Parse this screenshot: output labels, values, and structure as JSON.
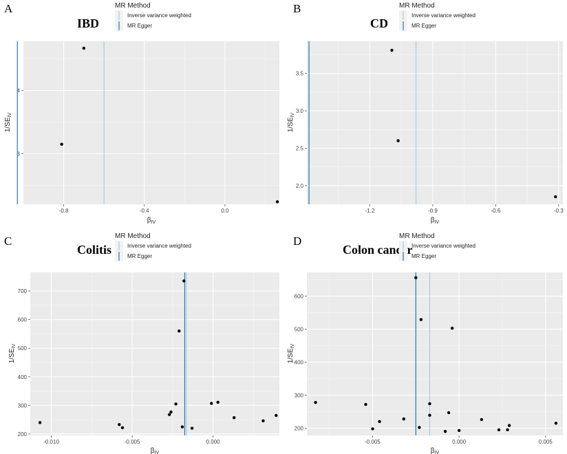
{
  "chart_data": [
    {
      "type": "scatter",
      "panel": "A",
      "title": "IBD",
      "legend_title": "MR Method",
      "legend": [
        "Inverse variance weighted",
        "MR Egger"
      ],
      "xlabel": "β",
      "xlabel_sub": "IV",
      "ylabel": "1/SE",
      "ylabel_sub": "IV",
      "xlim": [
        -1.0,
        0.27
      ],
      "ylim": [
        2.2,
        4.78
      ],
      "xticks": [
        -0.8,
        -0.4,
        0.0
      ],
      "xtick_labels": [
        "-0.8",
        "-0.4",
        "0.0"
      ],
      "yticks": [
        3,
        4
      ],
      "ytick_labels": [
        "3",
        "4"
      ],
      "points": [
        [
          -0.7,
          4.67
        ],
        [
          -0.81,
          3.15
        ],
        [
          0.26,
          2.24
        ]
      ],
      "lines": [
        {
          "method": "Inverse variance weighted",
          "x": -0.6
        },
        {
          "method": "MR Egger",
          "x": -1.03
        }
      ]
    },
    {
      "type": "scatter",
      "panel": "B",
      "title": "CD",
      "legend_title": "MR Method",
      "legend": [
        "Inverse variance weighted",
        "MR Egger"
      ],
      "xlabel": "β",
      "xlabel_sub": "IV",
      "ylabel": "1/SE",
      "ylabel_sub": "IV",
      "xlim": [
        -1.5,
        -0.28
      ],
      "ylim": [
        1.75,
        3.93
      ],
      "xticks": [
        -1.2,
        -0.9,
        -0.6,
        -0.3
      ],
      "xtick_labels": [
        "-1.2",
        "-0.9",
        "-0.6",
        "-0.3"
      ],
      "yticks": [
        2.0,
        2.5,
        3.0,
        3.5
      ],
      "ytick_labels": [
        "2.0",
        "2.5",
        "3.0",
        "3.5"
      ],
      "points": [
        [
          -1.095,
          3.81
        ],
        [
          -1.065,
          2.6
        ],
        [
          -0.315,
          1.85
        ]
      ],
      "lines": [
        {
          "method": "Inverse variance weighted",
          "x": -0.98
        },
        {
          "method": "MR Egger",
          "x": -1.49
        }
      ]
    },
    {
      "type": "scatter",
      "panel": "C",
      "title": "Colitis",
      "legend_title": "MR Method",
      "legend": [
        "Inverse variance weighted",
        "MR Egger"
      ],
      "xlabel": "β",
      "xlabel_sub": "IV",
      "ylabel": "1/SE",
      "ylabel_sub": "IV",
      "xlim": [
        -0.0113,
        0.0041
      ],
      "ylim": [
        195,
        765
      ],
      "xticks": [
        -0.01,
        -0.005,
        0.0
      ],
      "xtick_labels": [
        "-0.010",
        "-0.005",
        "0.000"
      ],
      "yticks": [
        200,
        300,
        400,
        500,
        600,
        700
      ],
      "ytick_labels": [
        "200",
        "300",
        "400",
        "500",
        "600",
        "700"
      ],
      "points": [
        [
          -0.0107,
          240
        ],
        [
          -0.0058,
          233
        ],
        [
          -0.0056,
          222
        ],
        [
          -0.0027,
          268
        ],
        [
          -0.0026,
          277
        ],
        [
          -0.0023,
          305
        ],
        [
          -0.0021,
          560
        ],
        [
          -0.0019,
          225
        ],
        [
          -0.0018,
          735
        ],
        [
          -0.0013,
          220
        ],
        [
          -0.0001,
          307
        ],
        [
          0.0003,
          311
        ],
        [
          0.0013,
          257
        ],
        [
          0.0031,
          246
        ],
        [
          0.0039,
          265
        ]
      ],
      "lines": [
        {
          "method": "Inverse variance weighted",
          "x": -0.00165
        },
        {
          "method": "MR Egger",
          "x": -0.00175
        }
      ]
    },
    {
      "type": "scatter",
      "panel": "D",
      "title": "Colon cancer",
      "legend_title": "MR Method",
      "legend": [
        "Inverse variance weighted",
        "MR Egger"
      ],
      "xlabel": "β",
      "xlabel_sub": "IV",
      "ylabel": "1/SE",
      "ylabel_sub": "IV",
      "xlim": [
        -0.0088,
        0.006
      ],
      "ylim": [
        178,
        672
      ],
      "xticks": [
        -0.005,
        0.0,
        0.005
      ],
      "xtick_labels": [
        "-0.005",
        "0.000",
        "0.005"
      ],
      "yticks": [
        200,
        300,
        400,
        500,
        600
      ],
      "ytick_labels": [
        "200",
        "300",
        "400",
        "500",
        "600"
      ],
      "points": [
        [
          -0.0083,
          278
        ],
        [
          -0.0054,
          272
        ],
        [
          -0.005,
          198
        ],
        [
          -0.0046,
          220
        ],
        [
          -0.0032,
          228
        ],
        [
          -0.0025,
          656
        ],
        [
          -0.0023,
          202
        ],
        [
          -0.0022,
          529
        ],
        [
          -0.0017,
          274
        ],
        [
          -0.0017,
          239
        ],
        [
          -0.0008,
          190
        ],
        [
          -0.0006,
          247
        ],
        [
          -0.0004,
          503
        ],
        [
          0.0,
          193
        ],
        [
          0.0013,
          226
        ],
        [
          0.0023,
          195
        ],
        [
          0.0028,
          195
        ],
        [
          0.0029,
          208
        ],
        [
          0.0056,
          215
        ]
      ],
      "lines": [
        {
          "method": "Inverse variance weighted",
          "x": -0.0017
        },
        {
          "method": "MR Egger",
          "x": -0.0025
        }
      ]
    }
  ]
}
